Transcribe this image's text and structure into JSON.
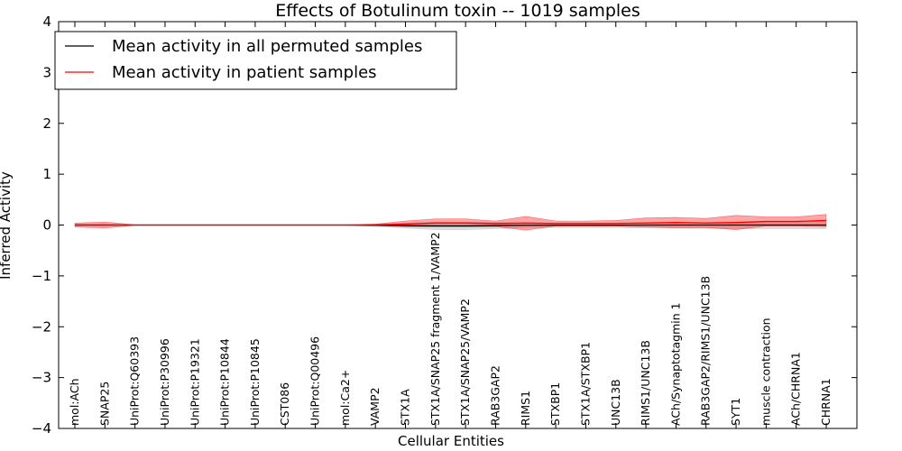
{
  "chart_data": {
    "type": "line",
    "title": "Effects of Botulinum toxin -- 1019 samples",
    "xlabel": "Cellular Entities",
    "ylabel": "Inferred Activity",
    "ylim": [
      -4,
      4
    ],
    "yticks": [
      -4,
      -3,
      -2,
      -1,
      0,
      1,
      2,
      3,
      4
    ],
    "ytick_labels": [
      "−4",
      "−3",
      "−2",
      "−1",
      "0",
      "1",
      "2",
      "3",
      "4"
    ],
    "grid": false,
    "legend_position": "top-left",
    "categories": [
      "mol:ACh",
      "SNAP25",
      "UniProt:Q60393",
      "UniProt:P30996",
      "UniProt:P19321",
      "UniProt:P10844",
      "UniProt:P10845",
      "CST086",
      "UniProt:Q00496",
      "mol:Ca2+",
      "VAMP2",
      "STX1A",
      "STX1A/SNAP25 fragment 1/VAMP2",
      "STX1A/SNAP25/VAMP2",
      "RAB3GAP2",
      "RIMS1",
      "STXBP1",
      "STX1A/STXBP1",
      "UNC13B",
      "RIMS1/UNC13B",
      "ACh/Synaptotagmin 1",
      "RAB3GAP2/RIMS1/UNC13B",
      "SYT1",
      "muscle contraction",
      "ACh/CHRNA1",
      "CHRNA1"
    ],
    "series": [
      {
        "name": "Mean activity in all permuted samples",
        "color": "#000000",
        "band_color": "#b4b4b4",
        "values": [
          0,
          0,
          0,
          0,
          0,
          0,
          0,
          0,
          0,
          0,
          -0.005,
          -0.01,
          -0.015,
          -0.015,
          -0.01,
          -0.005,
          -0.005,
          -0.005,
          -0.005,
          0,
          0,
          0,
          0,
          0,
          0,
          0
        ],
        "lower": [
          -0.02,
          -0.02,
          -0.005,
          -0.005,
          -0.005,
          -0.005,
          -0.005,
          -0.005,
          -0.005,
          -0.005,
          -0.03,
          -0.06,
          -0.09,
          -0.09,
          -0.07,
          -0.05,
          -0.05,
          -0.05,
          -0.05,
          -0.06,
          -0.06,
          -0.06,
          -0.07,
          -0.07,
          -0.07,
          -0.07
        ],
        "upper": [
          0.02,
          0.02,
          0.005,
          0.005,
          0.005,
          0.005,
          0.005,
          0.005,
          0.005,
          0.005,
          0.02,
          0.04,
          0.06,
          0.06,
          0.05,
          0.04,
          0.04,
          0.04,
          0.04,
          0.05,
          0.05,
          0.05,
          0.06,
          0.06,
          0.06,
          0.07
        ]
      },
      {
        "name": "Mean activity in patient samples",
        "color": "#ff0000",
        "band_color": "#ff0000",
        "values": [
          0,
          0,
          0,
          0,
          0,
          0,
          0,
          0,
          0,
          0,
          0.005,
          0.02,
          0.04,
          0.04,
          0.03,
          0.04,
          0.03,
          0.03,
          0.03,
          0.04,
          0.05,
          0.04,
          0.05,
          0.07,
          0.07,
          0.09
        ],
        "lower": [
          -0.04,
          -0.06,
          -0.005,
          -0.005,
          -0.005,
          -0.005,
          -0.005,
          -0.005,
          -0.005,
          -0.005,
          -0.01,
          -0.03,
          -0.04,
          -0.04,
          -0.03,
          -0.1,
          -0.02,
          -0.02,
          -0.02,
          -0.04,
          -0.05,
          -0.05,
          -0.09,
          -0.02,
          -0.02,
          -0.03
        ],
        "upper": [
          0.04,
          0.06,
          0.005,
          0.005,
          0.005,
          0.005,
          0.005,
          0.005,
          0.005,
          0.005,
          0.02,
          0.08,
          0.12,
          0.12,
          0.08,
          0.17,
          0.08,
          0.08,
          0.09,
          0.14,
          0.15,
          0.13,
          0.19,
          0.16,
          0.16,
          0.21
        ]
      }
    ]
  }
}
